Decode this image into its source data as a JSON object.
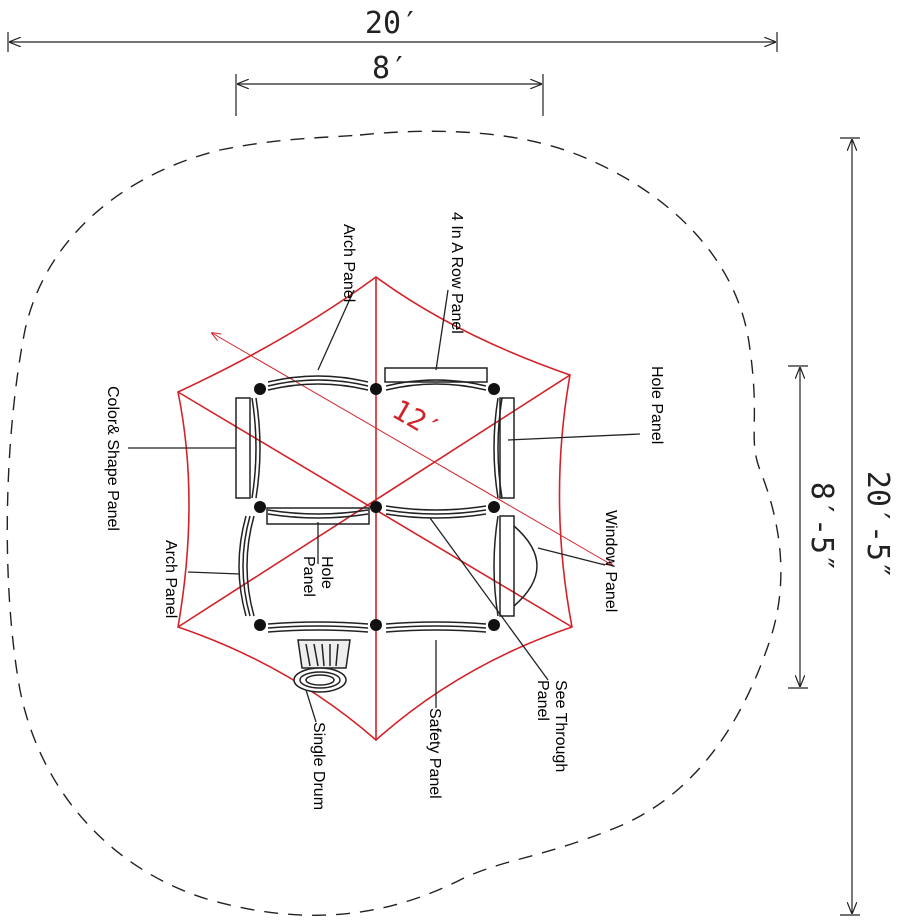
{
  "dimensions": {
    "overall_width": "20′",
    "inner_width": "8′",
    "overall_height": "20′-5″",
    "inner_height": "8′-5″",
    "canopy_span": "12′"
  },
  "labels": {
    "arch_panel_top": "Arch Panel",
    "four_in_a_row": "4 In A Row Panel",
    "hole_panel_right": "Hole Panel",
    "color_shape": "Color& Shape Panel",
    "window_panel": "Window Panel",
    "arch_panel_left": "Arch Panel",
    "hole_panel_center": "Hole Panel",
    "see_through": "See Through Panel",
    "safety_panel": "Safety Panel",
    "single_drum": "Single Drum"
  },
  "colors": {
    "canopy": "#d2232a",
    "lines": "#222222"
  }
}
